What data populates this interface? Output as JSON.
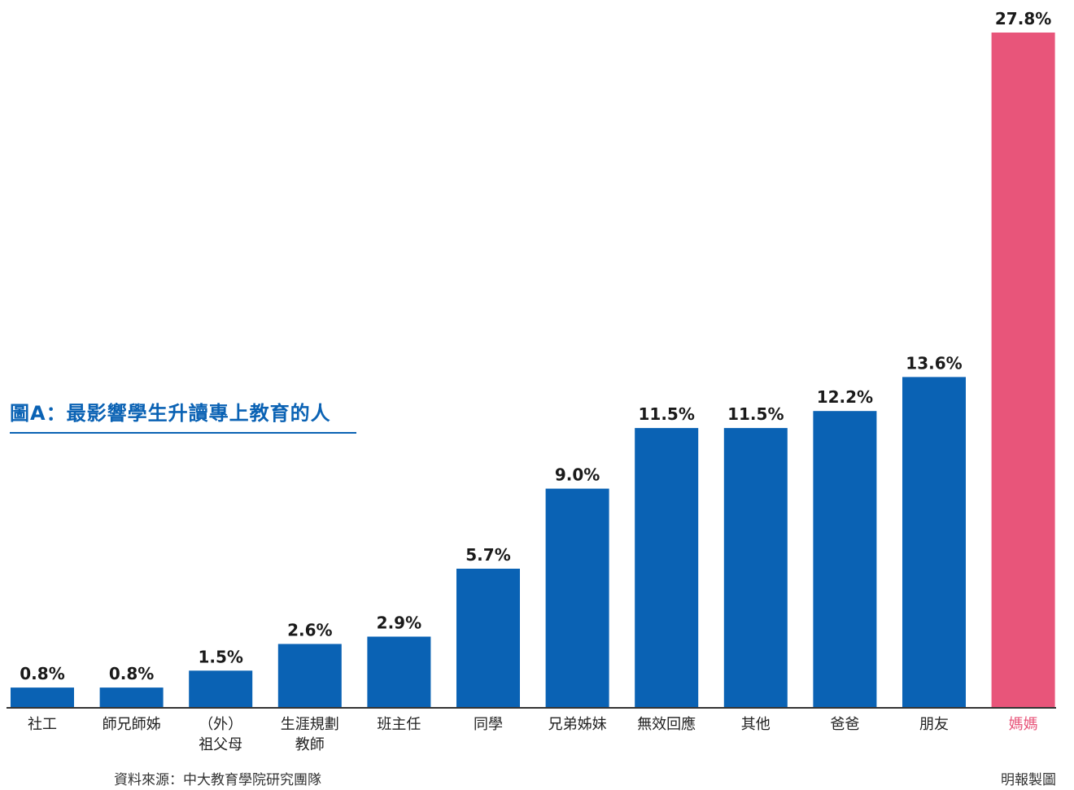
{
  "chart_data": {
    "type": "bar",
    "title": "圖A：最影響學生升讀專上教育的人",
    "categories": [
      [
        "社工"
      ],
      [
        "師兄師姊"
      ],
      [
        "（外）",
        "祖父母"
      ],
      [
        "生涯規劃",
        "教師"
      ],
      [
        "班主任"
      ],
      [
        "同學"
      ],
      [
        "兄弟姊妹"
      ],
      [
        "無效回應"
      ],
      [
        "其他"
      ],
      [
        "爸爸"
      ],
      [
        "朋友"
      ],
      [
        "媽媽"
      ]
    ],
    "values": [
      0.8,
      0.8,
      1.5,
      2.6,
      2.9,
      5.7,
      9.0,
      11.5,
      11.5,
      12.2,
      13.6,
      27.8
    ],
    "data_labels": [
      "0.8%",
      "0.8%",
      "1.5%",
      "2.6%",
      "2.9%",
      "5.7%",
      "9.0%",
      "11.5%",
      "11.5%",
      "12.2%",
      "13.6%",
      "27.8%"
    ],
    "highlight_index": 11,
    "ylim": [
      0,
      27.8
    ],
    "xlabel": "",
    "ylabel": "",
    "grid": false,
    "colors": {
      "bar": "#0a62b4",
      "highlight": "#e8557a",
      "title": "#0a62b4",
      "axis": "#333333"
    }
  },
  "footer": {
    "source": "資料來源：中大教育學院研究團隊",
    "credit": "明報製圖"
  }
}
